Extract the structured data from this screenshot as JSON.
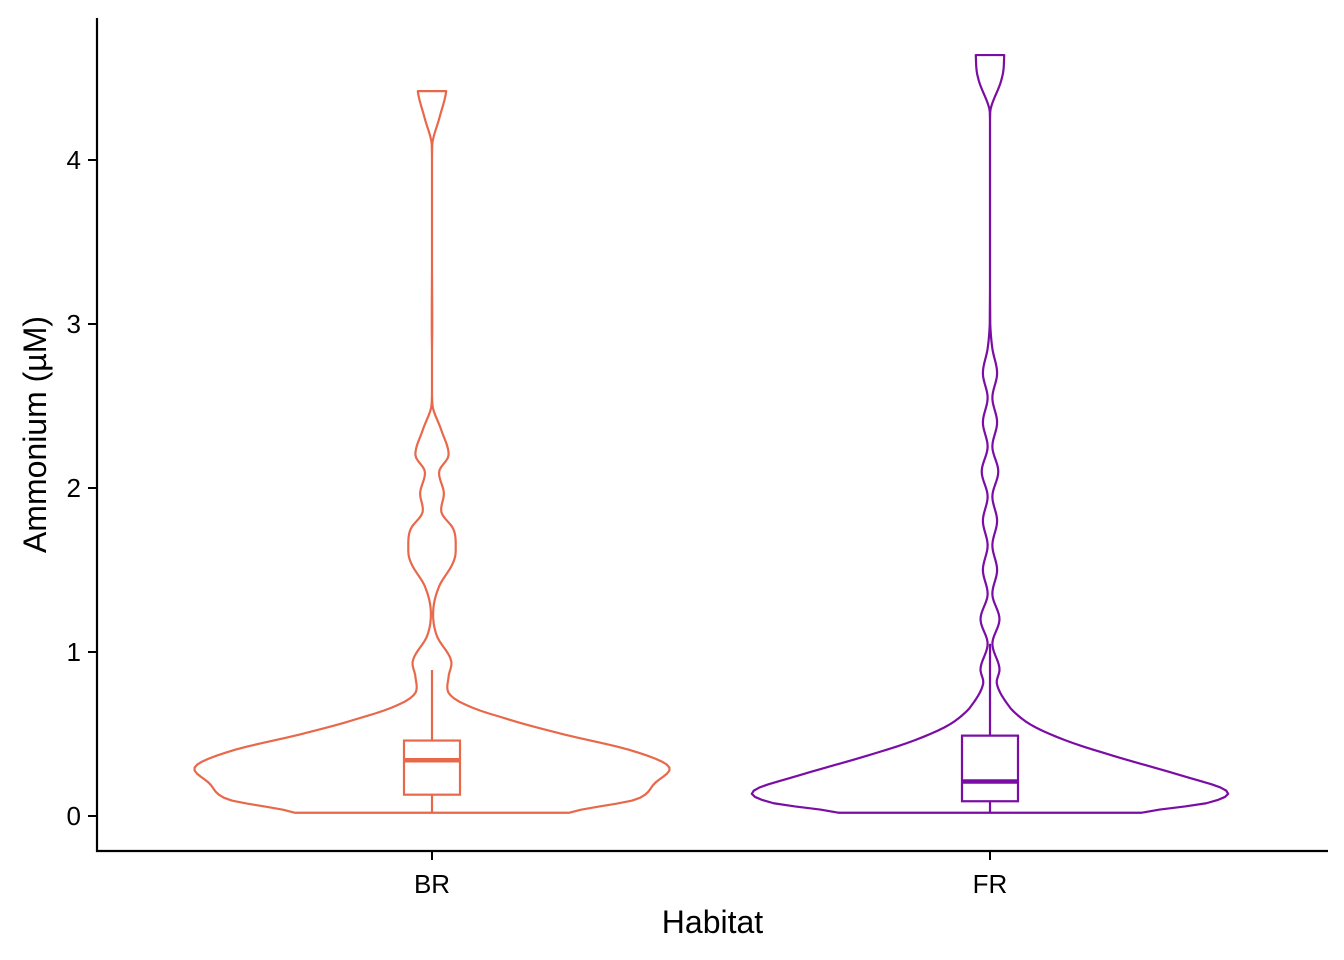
{
  "chart_data": {
    "type": "violin",
    "xlabel": "Habitat",
    "ylabel": "Ammonium (µM)",
    "categories": [
      "BR",
      "FR"
    ],
    "ylim": [
      -0.2,
      4.85
    ],
    "yticks": [
      0,
      1,
      2,
      3,
      4
    ],
    "grid": false,
    "legend": "none",
    "colors": {
      "BR": "#e8684a",
      "FR": "#7a0ea4"
    },
    "series": [
      {
        "category": "BR",
        "min": 0.02,
        "max": 4.42,
        "density": [
          [
            0.02,
            0.58
          ],
          [
            0.1,
            0.86
          ],
          [
            0.2,
            0.94
          ],
          [
            0.3,
            1.0
          ],
          [
            0.4,
            0.84
          ],
          [
            0.5,
            0.55
          ],
          [
            0.6,
            0.3
          ],
          [
            0.68,
            0.14
          ],
          [
            0.75,
            0.07
          ],
          [
            0.85,
            0.07
          ],
          [
            0.95,
            0.08
          ],
          [
            1.1,
            0.02
          ],
          [
            1.25,
            0.005
          ],
          [
            1.4,
            0.03
          ],
          [
            1.55,
            0.09
          ],
          [
            1.65,
            0.1
          ],
          [
            1.75,
            0.09
          ],
          [
            1.85,
            0.04
          ],
          [
            1.97,
            0.05
          ],
          [
            2.1,
            0.03
          ],
          [
            2.2,
            0.07
          ],
          [
            2.35,
            0.04
          ],
          [
            2.5,
            0.002
          ],
          [
            3.0,
            0.001
          ],
          [
            4.1,
            0.001
          ],
          [
            4.25,
            0.03
          ],
          [
            4.42,
            0.06
          ]
        ],
        "box": {
          "q1": 0.13,
          "median": 0.34,
          "q3": 0.46,
          "whisker_low": 0.02,
          "whisker_high": 0.89
        }
      },
      {
        "category": "FR",
        "min": 0.02,
        "max": 4.64,
        "density": [
          [
            0.02,
            0.64
          ],
          [
            0.08,
            0.92
          ],
          [
            0.15,
            1.0
          ],
          [
            0.25,
            0.8
          ],
          [
            0.35,
            0.56
          ],
          [
            0.45,
            0.34
          ],
          [
            0.55,
            0.18
          ],
          [
            0.65,
            0.09
          ],
          [
            0.8,
            0.03
          ],
          [
            0.9,
            0.04
          ],
          [
            1.05,
            0.01
          ],
          [
            1.2,
            0.04
          ],
          [
            1.35,
            0.01
          ],
          [
            1.5,
            0.03
          ],
          [
            1.65,
            0.01
          ],
          [
            1.8,
            0.03
          ],
          [
            1.95,
            0.01
          ],
          [
            2.1,
            0.035
          ],
          [
            2.25,
            0.01
          ],
          [
            2.4,
            0.03
          ],
          [
            2.55,
            0.01
          ],
          [
            2.7,
            0.03
          ],
          [
            2.85,
            0.01
          ],
          [
            3.0,
            0.001
          ],
          [
            4.3,
            0.001
          ],
          [
            4.5,
            0.05
          ],
          [
            4.64,
            0.06
          ]
        ],
        "box": {
          "q1": 0.09,
          "median": 0.21,
          "q3": 0.49,
          "whisker_low": 0.02,
          "whisker_high": 1.05
        }
      }
    ]
  }
}
